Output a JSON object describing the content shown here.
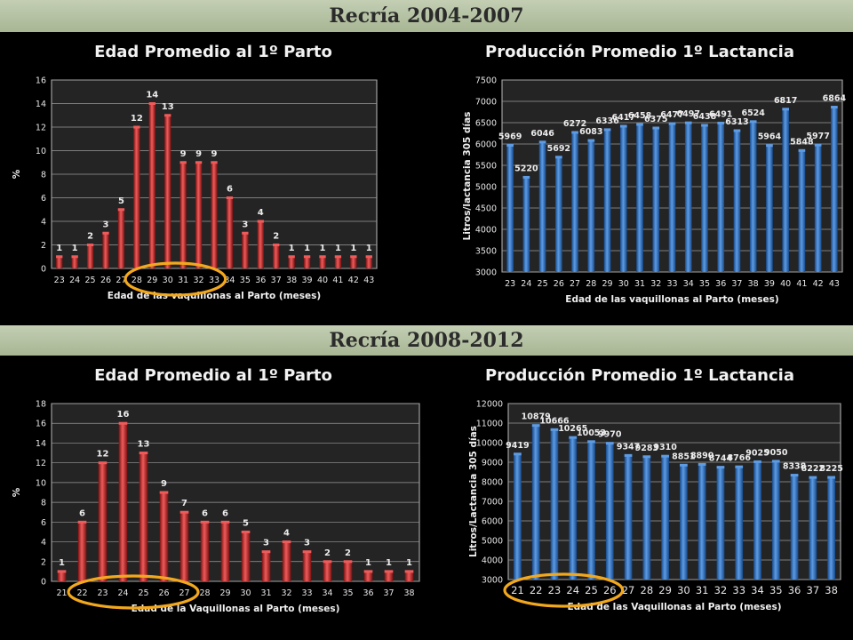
{
  "banners": {
    "top": "Recría 2004-2007",
    "bottom": "Recría 2008-2012"
  },
  "chart_data": [
    {
      "type": "bar",
      "title": "Edad Promedio al 1º Parto",
      "xlabel": "Edad de las vaquillonas al Parto (meses)",
      "ylabel": "%",
      "ylim": [
        0,
        16
      ],
      "yticks": [
        0,
        2,
        4,
        6,
        8,
        10,
        12,
        14,
        16
      ],
      "grid": true,
      "categories": [
        "23",
        "24",
        "25",
        "26",
        "27",
        "28",
        "29",
        "30",
        "31",
        "32",
        "33",
        "34",
        "35",
        "36",
        "37",
        "38",
        "39",
        "40",
        "41",
        "42",
        "43"
      ],
      "values": [
        1,
        1,
        2,
        3,
        5,
        12,
        14,
        13,
        9,
        9,
        9,
        6,
        3,
        4,
        2,
        1,
        1,
        1,
        1,
        1,
        1
      ],
      "color": "#cc2a2a",
      "highlight_categories": [
        "28",
        "29",
        "30",
        "31",
        "32",
        "33"
      ]
    },
    {
      "type": "bar",
      "title": "Producción  Promedio 1º Lactancia",
      "xlabel": "Edad de las vaquillonas al Parto (meses)",
      "ylabel": "Litros/lactancia 305 días",
      "ylim": [
        3000,
        7500
      ],
      "yticks": [
        3000,
        3500,
        4000,
        4500,
        5000,
        5500,
        6000,
        6500,
        7000,
        7500
      ],
      "grid": true,
      "categories": [
        "23",
        "24",
        "25",
        "26",
        "27",
        "28",
        "29",
        "30",
        "31",
        "32",
        "33",
        "34",
        "35",
        "36",
        "37",
        "38",
        "39",
        "40",
        "41",
        "42",
        "43"
      ],
      "values": [
        5969,
        5220,
        6046,
        5692,
        6272,
        6083,
        6336,
        6417,
        6458,
        6375,
        6477,
        6497,
        6438,
        6491,
        6313,
        6524,
        5964,
        6817,
        5848,
        5977,
        6864
      ],
      "color": "#2e6fc0"
    },
    {
      "type": "bar",
      "title": "Edad Promedio al 1º Parto",
      "xlabel": "Edad de la Vaquillonas al Parto (meses)",
      "ylabel": "%",
      "ylim": [
        0,
        18
      ],
      "yticks": [
        0,
        2,
        4,
        6,
        8,
        10,
        12,
        14,
        16,
        18
      ],
      "grid": true,
      "categories": [
        "21",
        "22",
        "23",
        "24",
        "25",
        "26",
        "27",
        "28",
        "29",
        "30",
        "31",
        "32",
        "33",
        "34",
        "35",
        "36",
        "37",
        "38"
      ],
      "values": [
        1,
        6,
        12,
        16,
        13,
        9,
        7,
        6,
        6,
        5,
        3,
        4,
        3,
        2,
        2,
        1,
        1,
        1
      ],
      "color": "#cc2a2a",
      "highlight_categories": [
        "22",
        "23",
        "24",
        "25",
        "26",
        "27"
      ]
    },
    {
      "type": "bar",
      "title": "Producción Promedio 1º Lactancia",
      "xlabel": "Edad de las Vaquillonas al Parto (meses)",
      "ylabel": "Litros/Lactancia 305 días",
      "ylim": [
        3000,
        12000
      ],
      "yticks": [
        3000,
        4000,
        5000,
        6000,
        7000,
        8000,
        9000,
        10000,
        11000,
        12000
      ],
      "grid": true,
      "categories": [
        "21",
        "22",
        "23",
        "24",
        "25",
        "26",
        "27",
        "28",
        "29",
        "30",
        "31",
        "32",
        "33",
        "34",
        "35",
        "36",
        "37",
        "38"
      ],
      "values": [
        9419,
        10879,
        10666,
        10265,
        10053,
        9970,
        9347,
        9283,
        9310,
        8851,
        8890,
        8744,
        8766,
        9025,
        9050,
        8338,
        8222,
        8225
      ],
      "color": "#2e6fc0",
      "highlight_categories": [
        "21",
        "22",
        "23",
        "24",
        "25",
        "26"
      ]
    }
  ]
}
